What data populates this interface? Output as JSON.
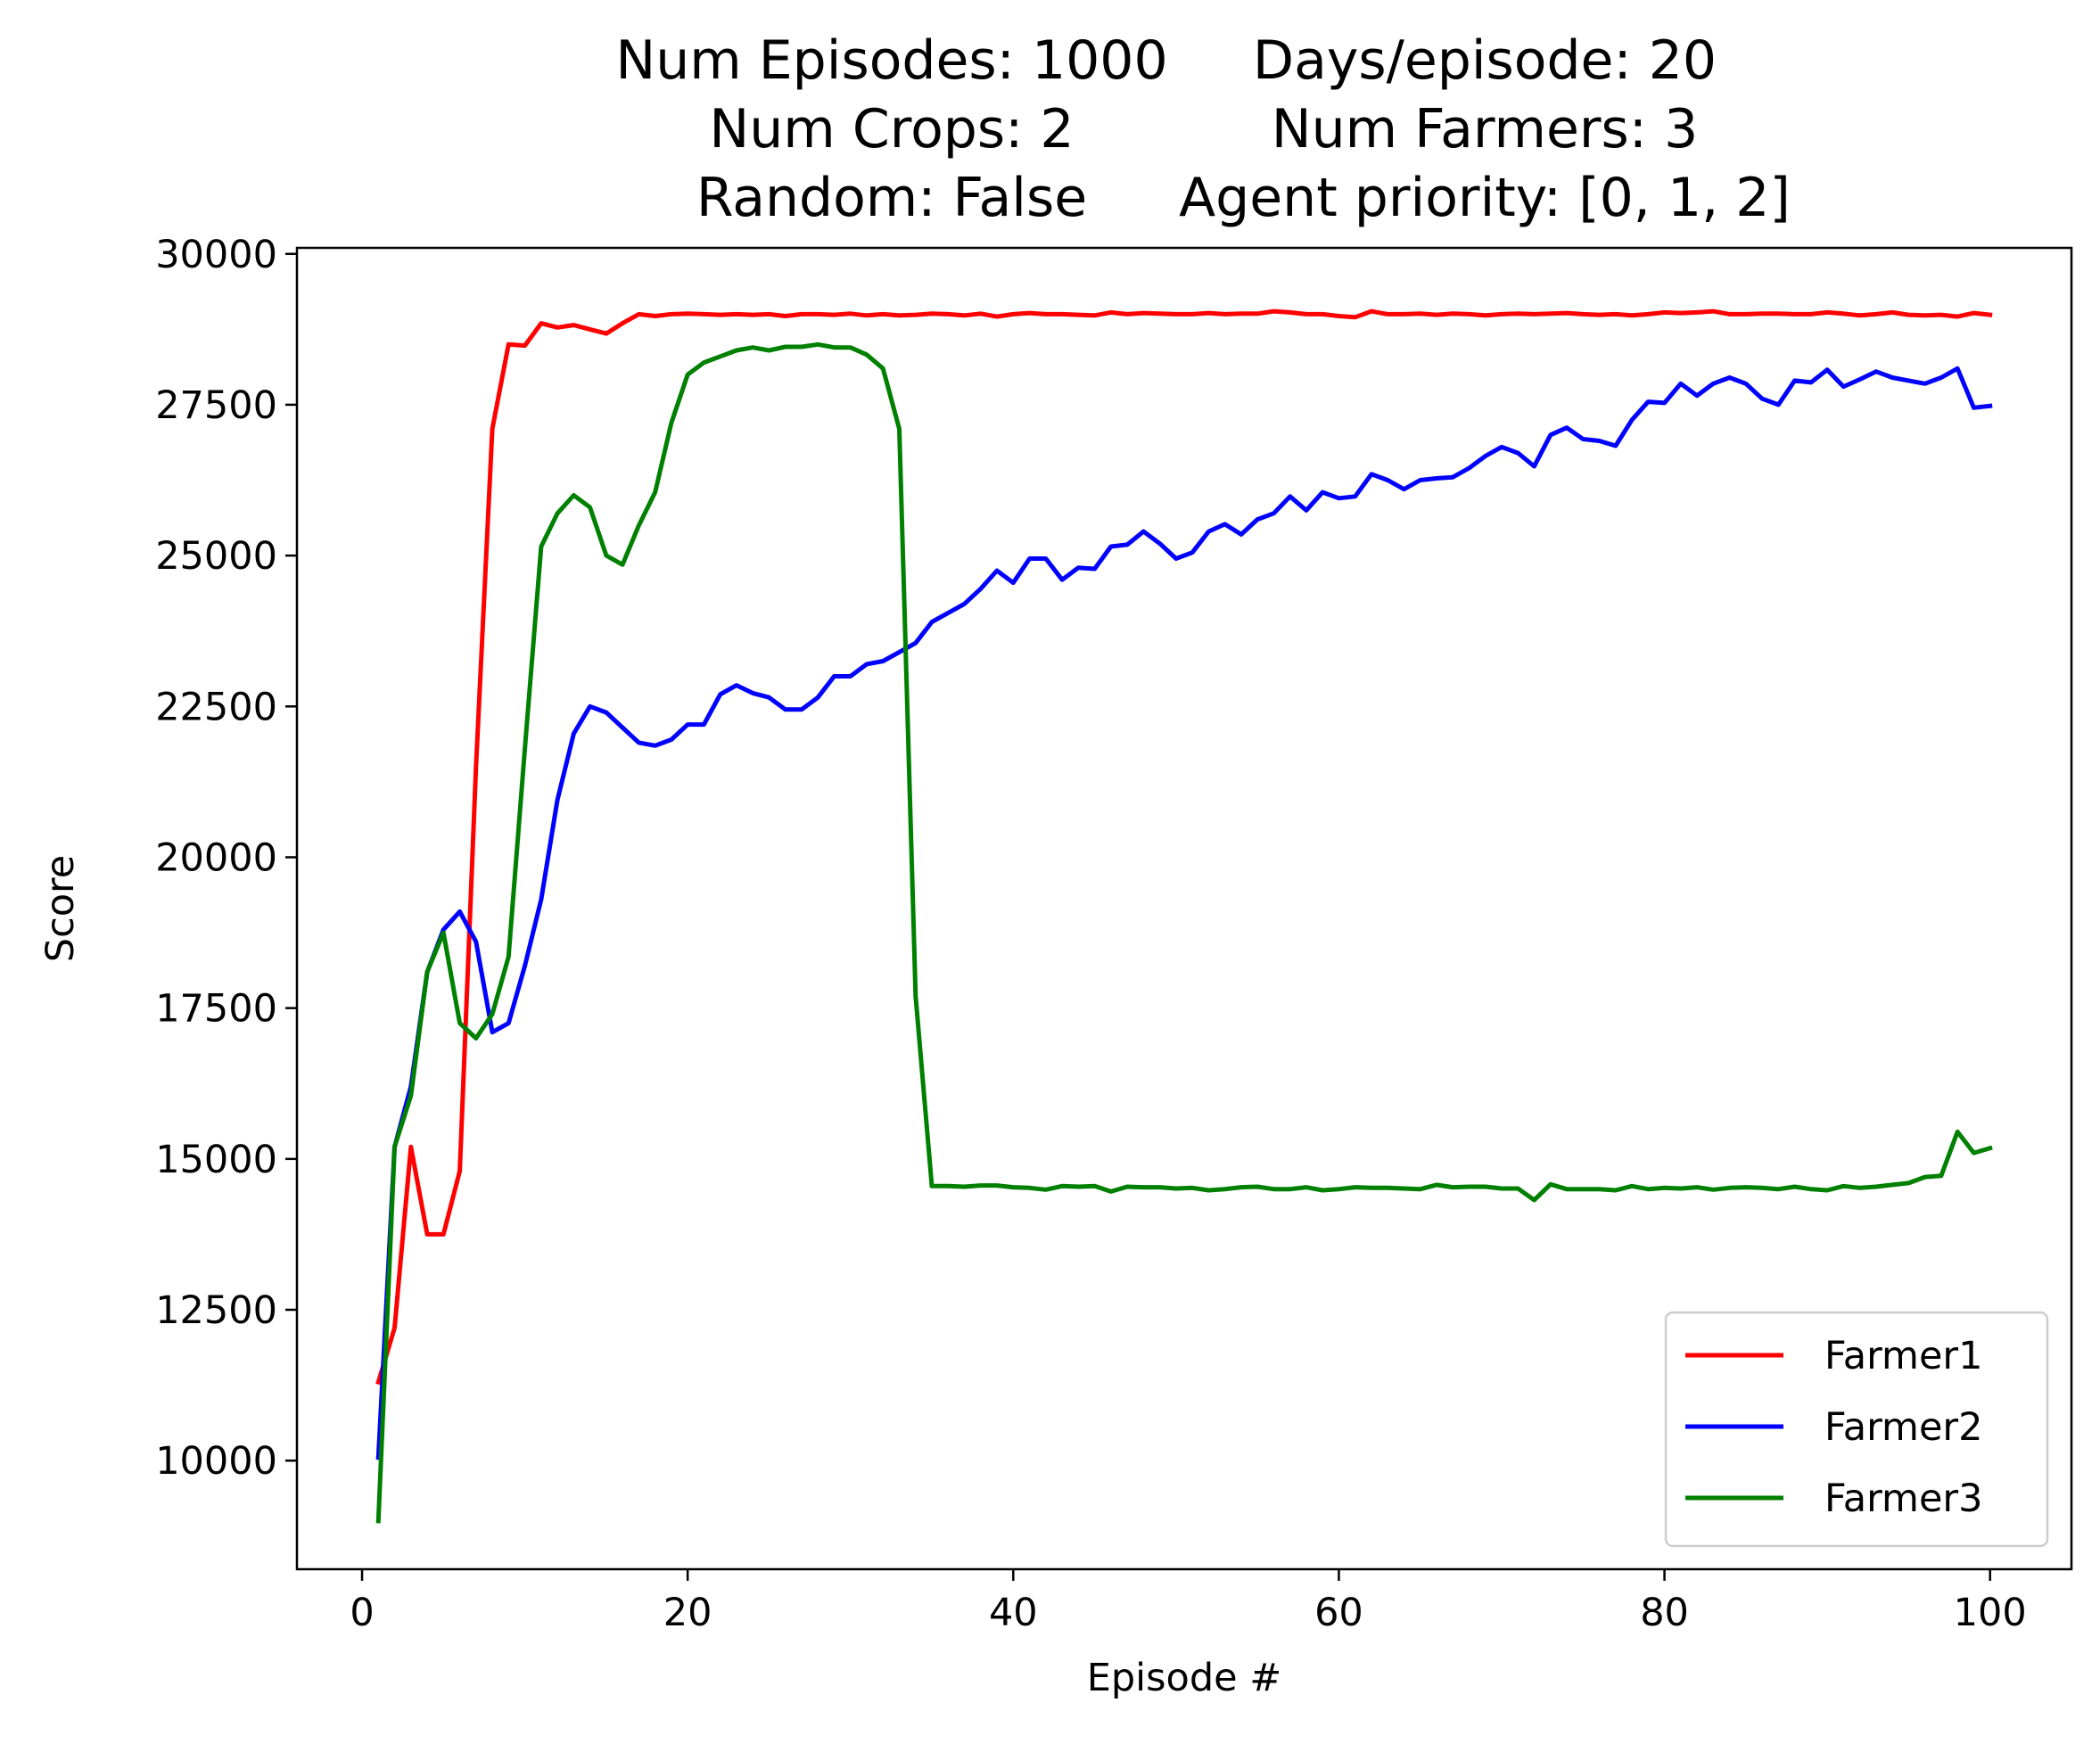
{
  "chart_data": {
    "type": "line",
    "title_lines": [
      [
        "Num Episodes: 1000",
        "Days/episode: 20"
      ],
      [
        "Num Crops: 2",
        "Num Farmers: 3"
      ],
      [
        "Random: False",
        "Agent priority: [0, 1, 2]"
      ]
    ],
    "xlabel": "Episode #",
    "ylabel": "Score",
    "xlim": [
      -4,
      105
    ],
    "ylim": [
      8200,
      30100
    ],
    "xticks": [
      0,
      20,
      40,
      60,
      80,
      100
    ],
    "yticks": [
      10000,
      12500,
      15000,
      17500,
      20000,
      22500,
      25000,
      27500,
      30000
    ],
    "legend_position": "lower right",
    "series": [
      {
        "name": "Farmer1",
        "color": "#ff0000",
        "x": [
          1,
          2,
          3,
          4,
          5,
          6,
          7,
          8,
          9,
          10,
          11,
          12,
          13,
          14,
          15,
          16,
          17,
          18,
          19,
          20,
          21,
          22,
          23,
          24,
          25,
          26,
          27,
          28,
          29,
          30,
          31,
          32,
          33,
          34,
          35,
          36,
          37,
          38,
          39,
          40,
          41,
          42,
          43,
          44,
          45,
          46,
          47,
          48,
          49,
          50,
          51,
          52,
          53,
          54,
          55,
          56,
          57,
          58,
          59,
          60,
          61,
          62,
          63,
          64,
          65,
          66,
          67,
          68,
          69,
          70,
          71,
          72,
          73,
          74,
          75,
          76,
          77,
          78,
          79,
          80,
          81,
          82,
          83,
          84,
          85,
          86,
          87,
          88,
          89,
          90,
          91,
          92,
          93,
          94,
          95,
          96,
          97,
          98,
          99,
          100
        ],
        "values": [
          11300,
          12200,
          15200,
          13750,
          13750,
          14800,
          21500,
          27100,
          28500,
          28480,
          28850,
          28780,
          28820,
          28750,
          28680,
          28850,
          29000,
          28970,
          29000,
          29010,
          29000,
          28990,
          29000,
          28990,
          29000,
          28970,
          29000,
          29000,
          28990,
          29010,
          28980,
          29000,
          28980,
          28990,
          29010,
          29000,
          28980,
          29010,
          28960,
          29000,
          29020,
          29000,
          29000,
          28990,
          28980,
          29030,
          29000,
          29020,
          29010,
          29000,
          29000,
          29020,
          29000,
          29010,
          29010,
          29050,
          29030,
          29000,
          29000,
          28970,
          28950,
          29050,
          29000,
          29000,
          29010,
          28990,
          29010,
          29000,
          28980,
          29000,
          29010,
          29000,
          29010,
          29020,
          29000,
          28990,
          29000,
          28980,
          29000,
          29030,
          29020,
          29030,
          29050,
          29000,
          29000,
          29010,
          29010,
          29000,
          29000,
          29030,
          29010,
          28980,
          29000,
          29030,
          28990,
          28980,
          28990,
          28960,
          29020,
          28990
        ]
      },
      {
        "name": "Farmer2",
        "color": "#0000ff",
        "x": [
          1,
          2,
          3,
          4,
          5,
          6,
          7,
          8,
          9,
          10,
          11,
          12,
          13,
          14,
          15,
          16,
          17,
          18,
          19,
          20,
          21,
          22,
          23,
          24,
          25,
          26,
          27,
          28,
          29,
          30,
          31,
          32,
          33,
          34,
          35,
          36,
          37,
          38,
          39,
          40,
          41,
          42,
          43,
          44,
          45,
          46,
          47,
          48,
          49,
          50,
          51,
          52,
          53,
          54,
          55,
          56,
          57,
          58,
          59,
          60,
          61,
          62,
          63,
          64,
          65,
          66,
          67,
          68,
          69,
          70,
          71,
          72,
          73,
          74,
          75,
          76,
          77,
          78,
          79,
          80,
          81,
          82,
          83,
          84,
          85,
          86,
          87,
          88,
          89,
          90,
          91,
          92,
          93,
          94,
          95,
          96,
          97,
          98,
          99,
          100
        ],
        "values": [
          10050,
          15200,
          16200,
          18100,
          18800,
          19100,
          18600,
          17100,
          17250,
          18200,
          19300,
          20950,
          22050,
          22500,
          22400,
          22150,
          21900,
          21850,
          21950,
          22200,
          22200,
          22700,
          22850,
          22720,
          22650,
          22450,
          22450,
          22650,
          23000,
          23000,
          23200,
          23250,
          23400,
          23550,
          23900,
          24050,
          24200,
          24450,
          24750,
          24550,
          24950,
          24950,
          24600,
          24800,
          24780,
          25150,
          25180,
          25400,
          25200,
          24950,
          25050,
          25400,
          25520,
          25350,
          25600,
          25700,
          25980,
          25750,
          26050,
          25950,
          25980,
          26350,
          26250,
          26100,
          26250,
          26280,
          26300,
          26450,
          26650,
          26800,
          26700,
          26480,
          27000,
          27120,
          26930,
          26900,
          26820,
          27250,
          27550,
          27530,
          27850,
          27650,
          27850,
          27950,
          27850,
          27600,
          27500,
          27900,
          27870,
          28080,
          27800,
          27920,
          28050,
          27950,
          27900,
          27850,
          27950,
          28100,
          27450,
          27480
        ]
      },
      {
        "name": "Farmer3",
        "color": "#008000",
        "x": [
          1,
          2,
          3,
          4,
          5,
          6,
          7,
          8,
          9,
          10,
          11,
          12,
          13,
          14,
          15,
          16,
          17,
          18,
          19,
          20,
          21,
          22,
          23,
          24,
          25,
          26,
          27,
          28,
          29,
          30,
          31,
          32,
          33,
          34,
          35,
          36,
          37,
          38,
          39,
          40,
          41,
          42,
          43,
          44,
          45,
          46,
          47,
          48,
          49,
          50,
          51,
          52,
          53,
          54,
          55,
          56,
          57,
          58,
          59,
          60,
          61,
          62,
          63,
          64,
          65,
          66,
          67,
          68,
          69,
          70,
          71,
          72,
          73,
          74,
          75,
          76,
          77,
          78,
          79,
          80,
          81,
          82,
          83,
          84,
          85,
          86,
          87,
          88,
          89,
          90,
          91,
          92,
          93,
          94,
          95,
          96,
          97,
          98,
          99,
          100
        ],
        "values": [
          9000,
          15200,
          16050,
          18100,
          18750,
          17250,
          17000,
          17400,
          18350,
          21800,
          25150,
          25700,
          26000,
          25800,
          25000,
          24850,
          25500,
          26050,
          27200,
          28000,
          28200,
          28300,
          28400,
          28450,
          28400,
          28460,
          28460,
          28500,
          28450,
          28450,
          28330,
          28100,
          27100,
          17700,
          14550,
          14550,
          14540,
          14560,
          14560,
          14530,
          14520,
          14490,
          14550,
          14540,
          14550,
          14460,
          14540,
          14530,
          14530,
          14510,
          14520,
          14480,
          14500,
          14530,
          14540,
          14500,
          14500,
          14530,
          14480,
          14500,
          14530,
          14520,
          14520,
          14510,
          14500,
          14570,
          14530,
          14540,
          14540,
          14510,
          14510,
          14320,
          14580,
          14500,
          14500,
          14500,
          14480,
          14550,
          14500,
          14520,
          14510,
          14530,
          14490,
          14520,
          14530,
          14520,
          14500,
          14540,
          14500,
          14480,
          14550,
          14520,
          14540,
          14570,
          14600,
          14700,
          14720,
          15450,
          15100,
          15180
        ]
      }
    ]
  }
}
